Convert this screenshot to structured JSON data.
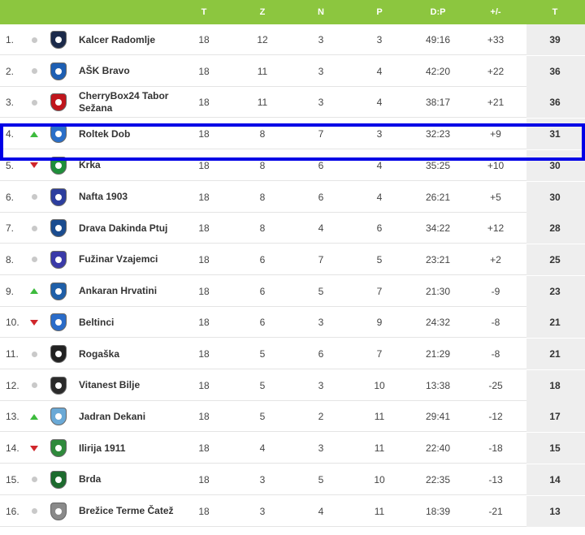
{
  "header": {
    "col_t": "T",
    "col_z": "Z",
    "col_n": "N",
    "col_p": "P",
    "col_goals": "D:P",
    "col_diff": "+/-",
    "col_pts": "T"
  },
  "teams": [
    {
      "pos": "1.",
      "trend": "same",
      "name": "Kalcer Radomlje",
      "t": "18",
      "z": "12",
      "n": "3",
      "p": "3",
      "goals": "49:16",
      "diff": "+33",
      "pts": "39",
      "crest_color": "#1b2a4a"
    },
    {
      "pos": "2.",
      "trend": "same",
      "name": "AŠK Bravo",
      "t": "18",
      "z": "11",
      "n": "3",
      "p": "4",
      "goals": "42:20",
      "diff": "+22",
      "pts": "36",
      "crest_color": "#1e5fb3"
    },
    {
      "pos": "3.",
      "trend": "same",
      "name": "CherryBox24 Tabor Sežana",
      "t": "18",
      "z": "11",
      "n": "3",
      "p": "4",
      "goals": "38:17",
      "diff": "+21",
      "pts": "36",
      "crest_color": "#c0161d"
    },
    {
      "pos": "4.",
      "trend": "up",
      "name": "Roltek Dob",
      "t": "18",
      "z": "8",
      "n": "7",
      "p": "3",
      "goals": "32:23",
      "diff": "+9",
      "pts": "31",
      "crest_color": "#2a6fc9"
    },
    {
      "pos": "5.",
      "trend": "down",
      "name": "Krka",
      "t": "18",
      "z": "8",
      "n": "6",
      "p": "4",
      "goals": "35:25",
      "diff": "+10",
      "pts": "30",
      "crest_color": "#1f8f3a"
    },
    {
      "pos": "6.",
      "trend": "same",
      "name": "Nafta 1903",
      "t": "18",
      "z": "8",
      "n": "6",
      "p": "4",
      "goals": "26:21",
      "diff": "+5",
      "pts": "30",
      "crest_color": "#2c3e9e"
    },
    {
      "pos": "7.",
      "trend": "same",
      "name": "Drava Dakinda Ptuj",
      "t": "18",
      "z": "8",
      "n": "4",
      "p": "6",
      "goals": "34:22",
      "diff": "+12",
      "pts": "28",
      "crest_color": "#1a4c8f"
    },
    {
      "pos": "8.",
      "trend": "same",
      "name": "Fužinar Vzajemci",
      "t": "18",
      "z": "6",
      "n": "7",
      "p": "5",
      "goals": "23:21",
      "diff": "+2",
      "pts": "25",
      "crest_color": "#3a3aa8"
    },
    {
      "pos": "9.",
      "trend": "up",
      "name": "Ankaran Hrvatini",
      "t": "18",
      "z": "6",
      "n": "5",
      "p": "7",
      "goals": "21:30",
      "diff": "-9",
      "pts": "23",
      "crest_color": "#1f5fa8"
    },
    {
      "pos": "10.",
      "trend": "down",
      "name": "Beltinci",
      "t": "18",
      "z": "6",
      "n": "3",
      "p": "9",
      "goals": "24:32",
      "diff": "-8",
      "pts": "21",
      "crest_color": "#2a6cc9"
    },
    {
      "pos": "11.",
      "trend": "same",
      "name": "Rogaška",
      "t": "18",
      "z": "5",
      "n": "6",
      "p": "7",
      "goals": "21:29",
      "diff": "-8",
      "pts": "21",
      "crest_color": "#222222"
    },
    {
      "pos": "12.",
      "trend": "same",
      "name": "Vitanest Bilje",
      "t": "18",
      "z": "5",
      "n": "3",
      "p": "10",
      "goals": "13:38",
      "diff": "-25",
      "pts": "18",
      "crest_color": "#2b2b2b"
    },
    {
      "pos": "13.",
      "trend": "up",
      "name": "Jadran Dekani",
      "t": "18",
      "z": "5",
      "n": "2",
      "p": "11",
      "goals": "29:41",
      "diff": "-12",
      "pts": "17",
      "crest_color": "#6aa9d6"
    },
    {
      "pos": "14.",
      "trend": "down",
      "name": "Ilirija 1911",
      "t": "18",
      "z": "4",
      "n": "3",
      "p": "11",
      "goals": "22:40",
      "diff": "-18",
      "pts": "15",
      "crest_color": "#2f8a3c"
    },
    {
      "pos": "15.",
      "trend": "same",
      "name": "Brda",
      "t": "18",
      "z": "3",
      "n": "5",
      "p": "10",
      "goals": "22:35",
      "diff": "-13",
      "pts": "14",
      "crest_color": "#1d6b2e"
    },
    {
      "pos": "16.",
      "trend": "same",
      "name": "Brežice Terme Čatež",
      "t": "18",
      "z": "3",
      "n": "4",
      "p": "11",
      "goals": "18:39",
      "diff": "-21",
      "pts": "13",
      "crest_color": "#8a8a8a"
    }
  ],
  "highlighted_team": "Roltek Dob",
  "colors": {
    "header_bg": "#8cc63f",
    "highlight_border": "#0000e6",
    "trend_up": "#3dbb3d",
    "trend_down": "#d0262b"
  }
}
